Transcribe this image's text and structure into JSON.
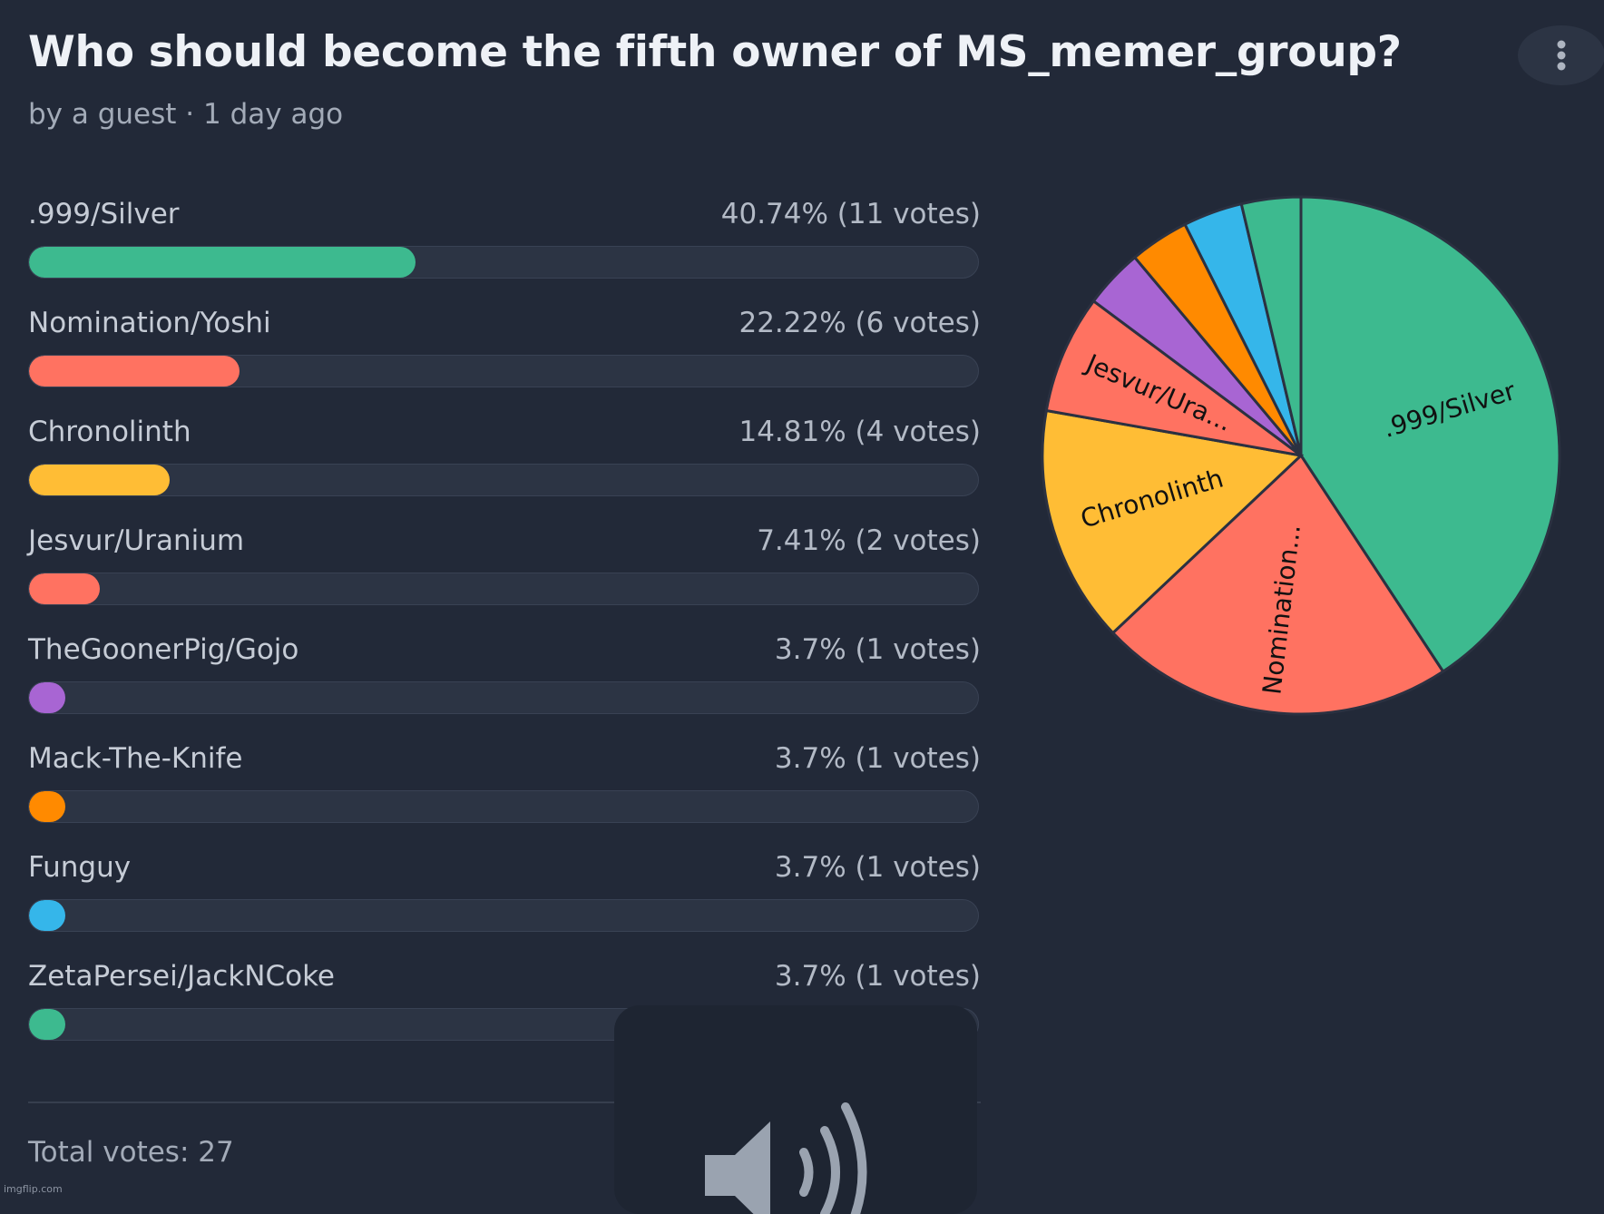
{
  "poll": {
    "title": "Who should become the fifth owner of MS_memer_group?",
    "subtitle": "by a guest · 1 day ago",
    "menu_icon": "vertical-dots-icon",
    "total_label": "Total votes: 27"
  },
  "options": [
    {
      "label": ".999/Silver",
      "stats": "40.74% (11 votes)",
      "percent": 40.74,
      "votes": 11,
      "color": "#3dba8f"
    },
    {
      "label": "Nomination/Yoshi",
      "stats": "22.22% (6 votes)",
      "percent": 22.22,
      "votes": 6,
      "color": "#ff7261"
    },
    {
      "label": "Chronolinth",
      "stats": "14.81% (4 votes)",
      "percent": 14.81,
      "votes": 4,
      "color": "#ffbd35"
    },
    {
      "label": "Jesvur/Uranium",
      "stats": "7.41% (2 votes)",
      "percent": 7.41,
      "votes": 2,
      "color": "#ff7261"
    },
    {
      "label": "TheGoonerPig/Gojo",
      "stats": "3.7% (1 votes)",
      "percent": 3.7,
      "votes": 1,
      "color": "#a865d3"
    },
    {
      "label": "Mack-The-Knife",
      "stats": "3.7% (1 votes)",
      "percent": 3.7,
      "votes": 1,
      "color": "#ff8a00"
    },
    {
      "label": "Funguy",
      "stats": "3.7% (1 votes)",
      "percent": 3.7,
      "votes": 1,
      "color": "#35b6ea"
    },
    {
      "label": "ZetaPersei/JackNCoke",
      "stats": "3.7% (1 votes)",
      "percent": 3.7,
      "votes": 1,
      "color": "#3dba8f"
    }
  ],
  "chart_data": {
    "type": "pie",
    "slices": [
      {
        "label": ".999/Silver",
        "value": 11,
        "slice_label": ".999/Silver"
      },
      {
        "label": "Nomination/Yoshi",
        "value": 6,
        "slice_label": "Nomination..."
      },
      {
        "label": "Chronolinth",
        "value": 4,
        "slice_label": "Chronolinth"
      },
      {
        "label": "Jesvur/Uranium",
        "value": 2,
        "slice_label": "Jesvur/Ura..."
      },
      {
        "label": "TheGoonerPig/Gojo",
        "value": 1,
        "slice_label": ""
      },
      {
        "label": "Mack-The-Knife",
        "value": 1,
        "slice_label": ""
      },
      {
        "label": "Funguy",
        "value": 1,
        "slice_label": ""
      },
      {
        "label": "ZetaPersei/JackNCoke",
        "value": 1,
        "slice_label": ""
      }
    ],
    "colors": [
      "#3dba8f",
      "#ff7261",
      "#ffbd35",
      "#ff7261",
      "#a865d3",
      "#ff8a00",
      "#35b6ea",
      "#3dba8f"
    ],
    "start": "12 o'clock, clockwise",
    "legend": "none"
  },
  "overlay": {
    "icon": "speaker-volume-icon"
  },
  "watermark": "imgflip.com"
}
